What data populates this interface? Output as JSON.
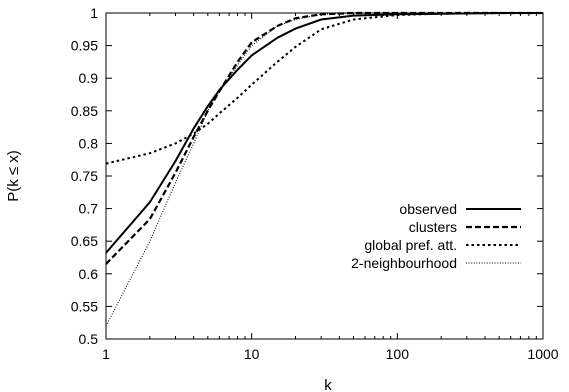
{
  "chart_data": {
    "type": "line",
    "title": "",
    "xlabel": "k",
    "ylabel": "P(k ≤ x)",
    "xscale": "log",
    "xlim": [
      1,
      1000
    ],
    "ylim": [
      0.5,
      1
    ],
    "x_ticks": [
      1,
      10,
      100,
      1000
    ],
    "x_tick_labels": [
      "1",
      "10",
      "100",
      "1000"
    ],
    "y_ticks": [
      0.5,
      0.55,
      0.6,
      0.65,
      0.7,
      0.75,
      0.8,
      0.85,
      0.9,
      0.95,
      1
    ],
    "y_tick_labels": [
      "0.5",
      "0.55",
      "0.6",
      "0.65",
      "0.7",
      "0.75",
      "0.8",
      "0.85",
      "0.9",
      "0.95",
      "1"
    ],
    "grid": false,
    "legend_position": "bottom-right",
    "series": [
      {
        "name": "observed",
        "style": "solid",
        "x": [
          1,
          2,
          3,
          4,
          5,
          6,
          8,
          10,
          15,
          20,
          30,
          50,
          100,
          200,
          500,
          1000
        ],
        "y": [
          0.632,
          0.71,
          0.773,
          0.823,
          0.857,
          0.882,
          0.913,
          0.935,
          0.962,
          0.976,
          0.99,
          0.996,
          0.998,
          0.999,
          1,
          1
        ]
      },
      {
        "name": "clusters",
        "style": "dashed",
        "x": [
          1,
          2,
          3,
          4,
          5,
          6,
          8,
          10,
          15,
          20,
          30,
          50,
          100,
          1000
        ],
        "y": [
          0.615,
          0.684,
          0.755,
          0.81,
          0.85,
          0.88,
          0.925,
          0.955,
          0.98,
          0.992,
          0.998,
          1,
          1,
          1
        ]
      },
      {
        "name": "global pref. att.",
        "style": "dotted",
        "x": [
          1,
          2,
          3,
          4,
          5,
          6,
          8,
          10,
          15,
          20,
          30,
          50,
          100,
          200,
          500,
          1000
        ],
        "y": [
          0.769,
          0.785,
          0.8,
          0.815,
          0.83,
          0.846,
          0.87,
          0.89,
          0.925,
          0.948,
          0.975,
          0.99,
          0.997,
          0.999,
          1,
          1
        ]
      },
      {
        "name": "2-neighbourhood",
        "style": "fine-dotted",
        "x": [
          1,
          2,
          3,
          4,
          5,
          6,
          8,
          10,
          15,
          20,
          30,
          50,
          100,
          1000
        ],
        "y": [
          0.52,
          0.65,
          0.74,
          0.8,
          0.85,
          0.88,
          0.92,
          0.95,
          0.98,
          0.99,
          0.998,
          1,
          1,
          1
        ]
      }
    ]
  }
}
